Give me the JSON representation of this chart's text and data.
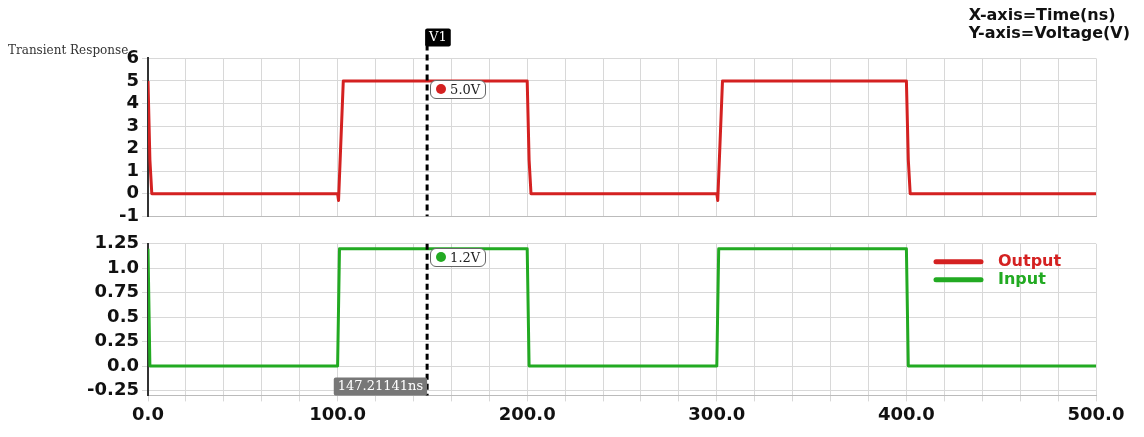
{
  "chart_data": [
    {
      "type": "line",
      "title": "Transient Response",
      "annotations": [
        "X-axis=Time(ns)",
        "Y-axis=Voltage(V)",
        {
          "text": "5.0V",
          "x": 147.21141,
          "y": 5
        }
      ],
      "xlim": [
        0,
        500
      ],
      "xticks": [
        {
          "value": 0,
          "label": null
        },
        {
          "value": 20,
          "label": null
        },
        {
          "value": 40,
          "label": null
        },
        {
          "value": 60,
          "label": null
        },
        {
          "value": 80,
          "label": null
        },
        {
          "value": 100,
          "label": null
        },
        {
          "value": 120,
          "label": null
        },
        {
          "value": 140,
          "label": null
        },
        {
          "value": 160,
          "label": null
        },
        {
          "value": 180,
          "label": null
        },
        {
          "value": 200,
          "label": null
        },
        {
          "value": 220,
          "label": null
        },
        {
          "value": 240,
          "label": null
        },
        {
          "value": 260,
          "label": null
        },
        {
          "value": 280,
          "label": null
        },
        {
          "value": 300,
          "label": null
        },
        {
          "value": 320,
          "label": null
        },
        {
          "value": 340,
          "label": null
        },
        {
          "value": 360,
          "label": null
        },
        {
          "value": 380,
          "label": null
        },
        {
          "value": 400,
          "label": null
        },
        {
          "value": 420,
          "label": null
        },
        {
          "value": 440,
          "label": null
        },
        {
          "value": 460,
          "label": null
        },
        {
          "value": 480,
          "label": null
        },
        {
          "value": 500,
          "label": null
        }
      ],
      "ylim": [
        -1,
        6
      ],
      "yticks": [
        -1,
        0,
        1,
        2,
        3,
        4,
        5,
        6
      ],
      "grid": true,
      "tick_labels": "y",
      "legend": false,
      "marker": "none",
      "ref_lines": [
        {
          "axis": "x",
          "value": 147.21141,
          "label": "V1",
          "color": "#000000",
          "line_style": "dashed"
        }
      ],
      "series": [
        {
          "name": "Output",
          "color": "#d42121",
          "x": [
            0,
            1,
            2,
            100,
            100.5,
            103,
            200,
            201,
            202,
            300,
            300.5,
            303,
            400,
            401,
            402,
            500
          ],
          "values": [
            5,
            1.5,
            0,
            0,
            -0.3,
            5,
            5,
            1.5,
            0,
            0,
            -0.3,
            5,
            5,
            1.5,
            0,
            0
          ]
        }
      ]
    },
    {
      "type": "line",
      "annotations": [
        {
          "text": "1.2V",
          "x": 147.21141,
          "y": 1.2
        }
      ],
      "xlim": [
        0,
        500
      ],
      "xticks": [
        {
          "value": 0,
          "label": "0.0"
        },
        {
          "value": 20,
          "label": null
        },
        {
          "value": 40,
          "label": null
        },
        {
          "value": 60,
          "label": null
        },
        {
          "value": 80,
          "label": null
        },
        {
          "value": 100,
          "label": "100.0"
        },
        {
          "value": 120,
          "label": null
        },
        {
          "value": 140,
          "label": null
        },
        {
          "value": 160,
          "label": null
        },
        {
          "value": 180,
          "label": null
        },
        {
          "value": 200,
          "label": "200.0"
        },
        {
          "value": 220,
          "label": null
        },
        {
          "value": 240,
          "label": null
        },
        {
          "value": 260,
          "label": null
        },
        {
          "value": 280,
          "label": null
        },
        {
          "value": 300,
          "label": "300.0"
        },
        {
          "value": 320,
          "label": null
        },
        {
          "value": 340,
          "label": null
        },
        {
          "value": 360,
          "label": null
        },
        {
          "value": 380,
          "label": null
        },
        {
          "value": 400,
          "label": "400.0"
        },
        {
          "value": 420,
          "label": null
        },
        {
          "value": 440,
          "label": null
        },
        {
          "value": 460,
          "label": null
        },
        {
          "value": 480,
          "label": null
        },
        {
          "value": 500,
          "label": "500.0"
        }
      ],
      "ylim": [
        -0.3,
        1.25
      ],
      "yticks": [
        {
          "value": -0.25,
          "label": "-0.25"
        },
        {
          "value": 0,
          "label": "0.0"
        },
        {
          "value": 0.25,
          "label": "0.25"
        },
        {
          "value": 0.5,
          "label": "0.5"
        },
        {
          "value": 0.75,
          "label": "0.75"
        },
        {
          "value": 1,
          "label": "1.0"
        },
        {
          "value": 1.25,
          "label": "1.25"
        }
      ],
      "grid": true,
      "legend": "top right",
      "marker": "none",
      "ref_lines": [
        {
          "axis": "x",
          "value": 147.21141,
          "label": "147.21141ns",
          "color": "#000000",
          "line_style": "dashed"
        }
      ],
      "series": [
        {
          "name": "Input",
          "color": "#22aa22",
          "x": [
            0,
            1,
            100,
            101,
            200,
            201,
            300,
            301,
            400,
            401,
            500
          ],
          "values": [
            1.2,
            0,
            0,
            1.2,
            1.2,
            0,
            0,
            1.2,
            1.2,
            0,
            0
          ]
        }
      ]
    }
  ]
}
